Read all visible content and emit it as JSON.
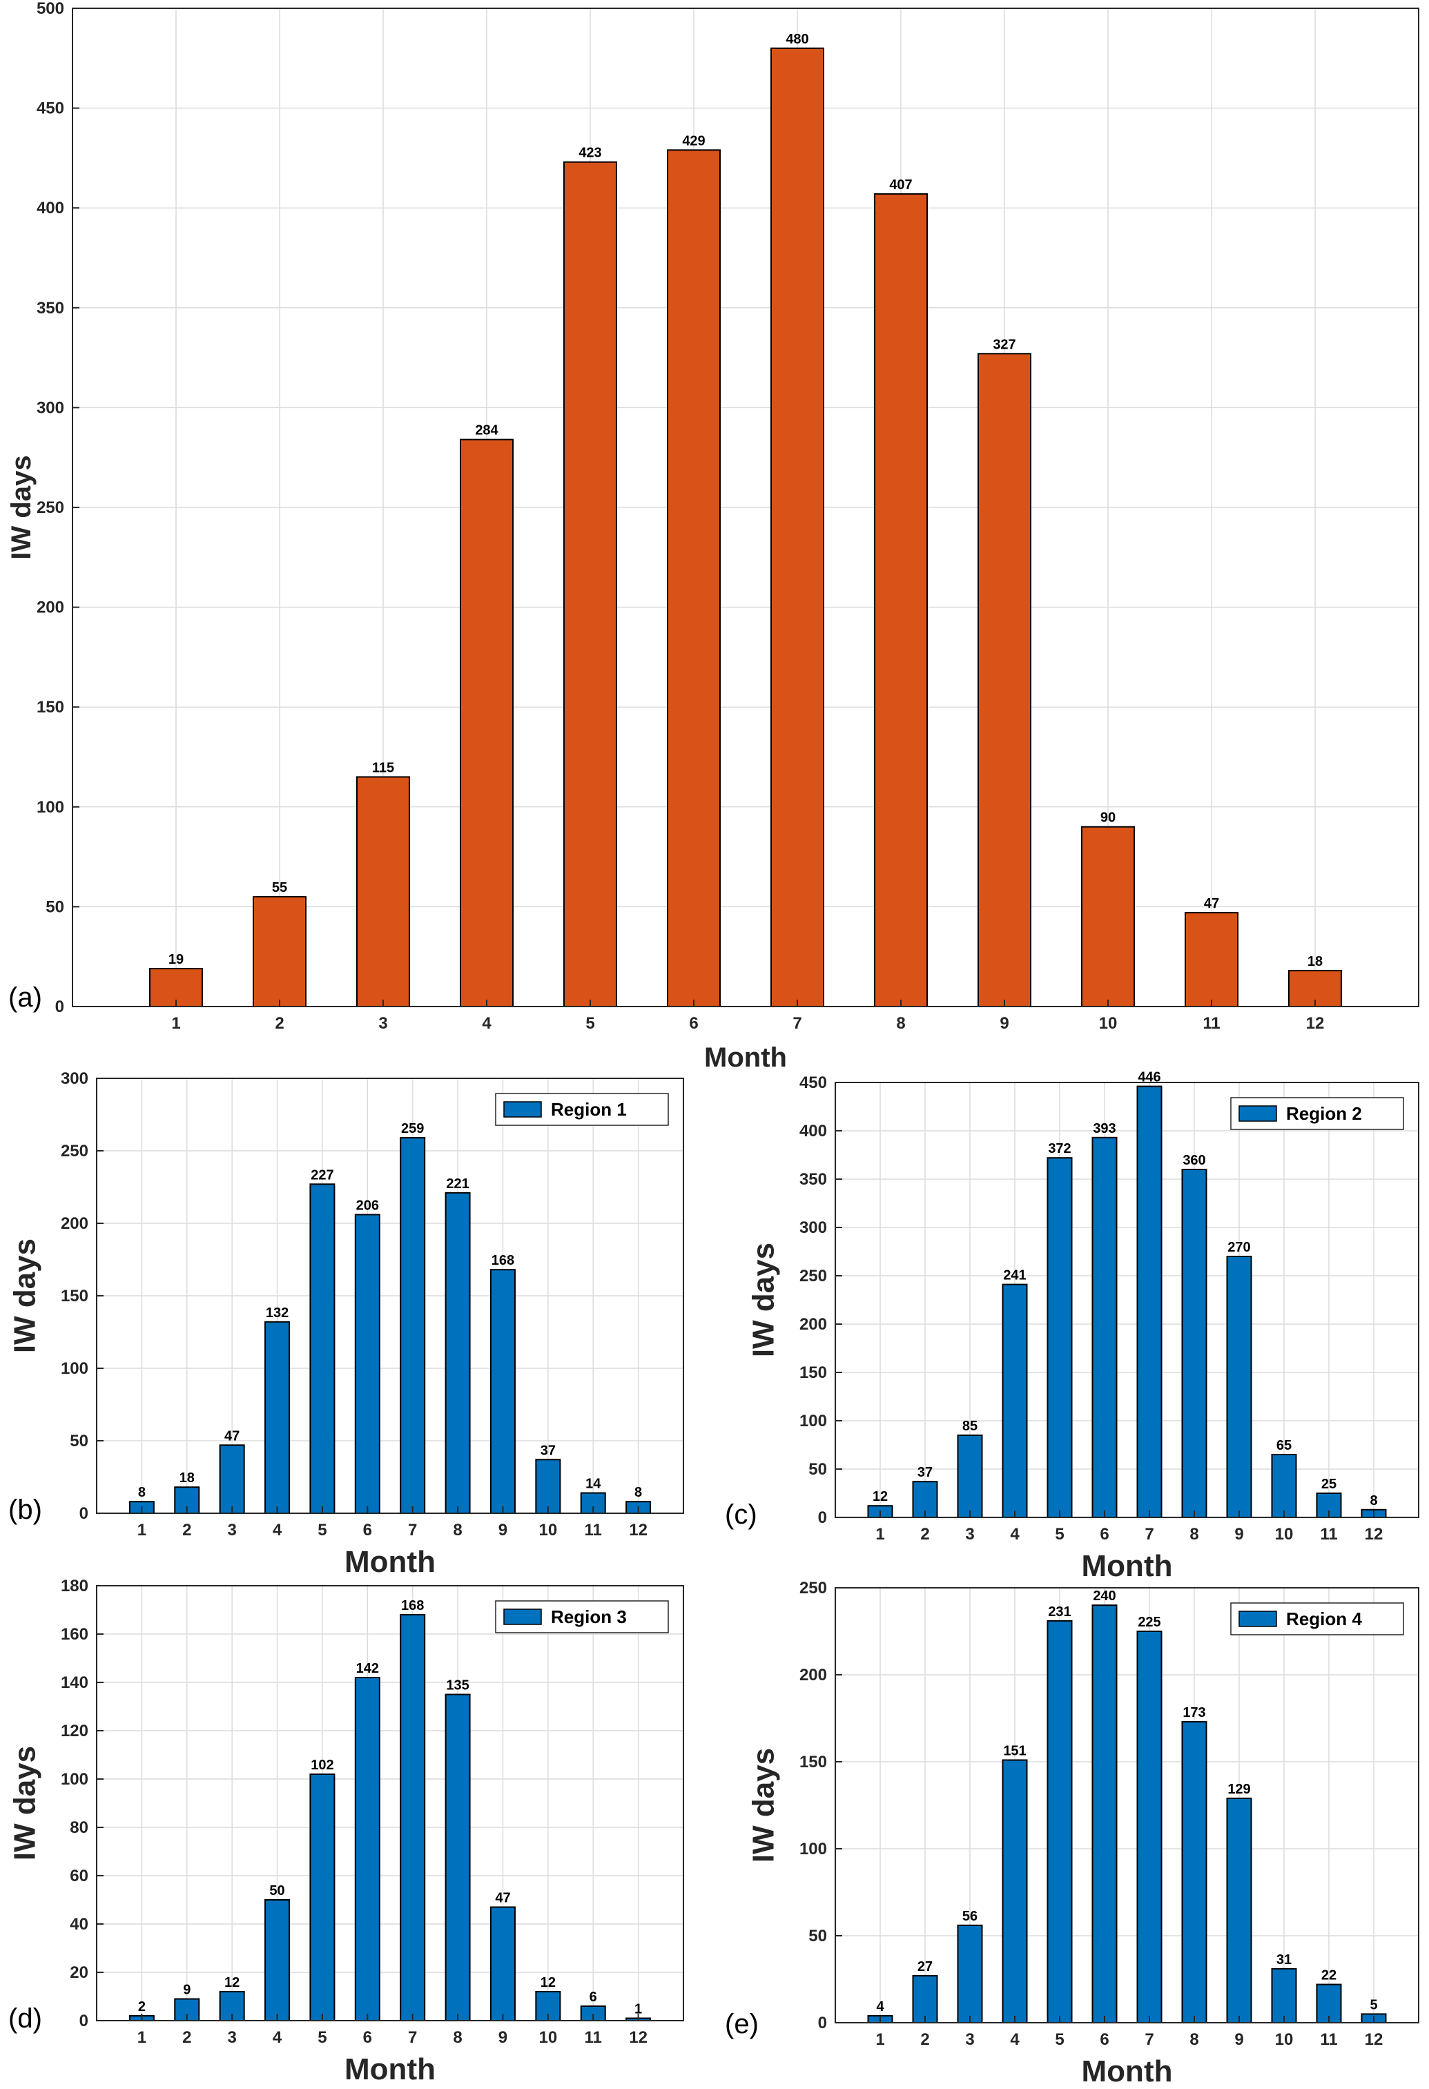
{
  "chart_data": [
    {
      "panel": "(a)",
      "type": "bar",
      "categories": [
        "1",
        "2",
        "3",
        "4",
        "5",
        "6",
        "7",
        "8",
        "9",
        "10",
        "11",
        "12"
      ],
      "values": [
        19,
        55,
        115,
        284,
        423,
        429,
        480,
        407,
        327,
        90,
        47,
        18
      ],
      "xlabel": "Month",
      "ylabel": "IW days",
      "ylim": [
        0,
        500
      ],
      "yticks": [
        0,
        50,
        100,
        150,
        200,
        250,
        300,
        350,
        400,
        450,
        500
      ],
      "legend": "",
      "color": "#D95319",
      "grid": true
    },
    {
      "panel": "(b)",
      "type": "bar",
      "categories": [
        "1",
        "2",
        "3",
        "4",
        "5",
        "6",
        "7",
        "8",
        "9",
        "10",
        "11",
        "12"
      ],
      "values": [
        8,
        18,
        47,
        132,
        227,
        206,
        259,
        221,
        168,
        37,
        14,
        8
      ],
      "xlabel": "Month",
      "ylabel": "IW days",
      "ylim": [
        0,
        300
      ],
      "yticks": [
        0,
        50,
        100,
        150,
        200,
        250,
        300
      ],
      "legend": "Region 1",
      "legend_position": "top-right",
      "color": "#0072BD",
      "grid": true
    },
    {
      "panel": "(c)",
      "type": "bar",
      "categories": [
        "1",
        "2",
        "3",
        "4",
        "5",
        "6",
        "7",
        "8",
        "9",
        "10",
        "11",
        "12"
      ],
      "values": [
        12,
        37,
        85,
        241,
        372,
        393,
        446,
        360,
        270,
        65,
        25,
        8
      ],
      "xlabel": "Month",
      "ylabel": "IW days",
      "ylim": [
        0,
        450
      ],
      "yticks": [
        0,
        50,
        100,
        150,
        200,
        250,
        300,
        350,
        400,
        450
      ],
      "legend": "Region 2",
      "legend_position": "top-right",
      "color": "#0072BD",
      "grid": true
    },
    {
      "panel": "(d)",
      "type": "bar",
      "categories": [
        "1",
        "2",
        "3",
        "4",
        "5",
        "6",
        "7",
        "8",
        "9",
        "10",
        "11",
        "12"
      ],
      "values": [
        2,
        9,
        12,
        50,
        102,
        142,
        168,
        135,
        47,
        12,
        6,
        1
      ],
      "xlabel": "Month",
      "ylabel": "IW days",
      "ylim": [
        0,
        180
      ],
      "yticks": [
        0,
        20,
        40,
        60,
        80,
        100,
        120,
        140,
        160,
        180
      ],
      "legend": "Region 3",
      "legend_position": "top-right",
      "color": "#0072BD",
      "grid": true
    },
    {
      "panel": "(e)",
      "type": "bar",
      "categories": [
        "1",
        "2",
        "3",
        "4",
        "5",
        "6",
        "7",
        "8",
        "9",
        "10",
        "11",
        "12"
      ],
      "values": [
        4,
        27,
        56,
        151,
        231,
        240,
        225,
        173,
        129,
        31,
        22,
        5
      ],
      "xlabel": "Month",
      "ylabel": "IW days",
      "ylim": [
        0,
        250
      ],
      "yticks": [
        0,
        50,
        100,
        150,
        200,
        250
      ],
      "legend": "Region 4",
      "legend_position": "top-right",
      "color": "#0072BD",
      "grid": true
    }
  ]
}
